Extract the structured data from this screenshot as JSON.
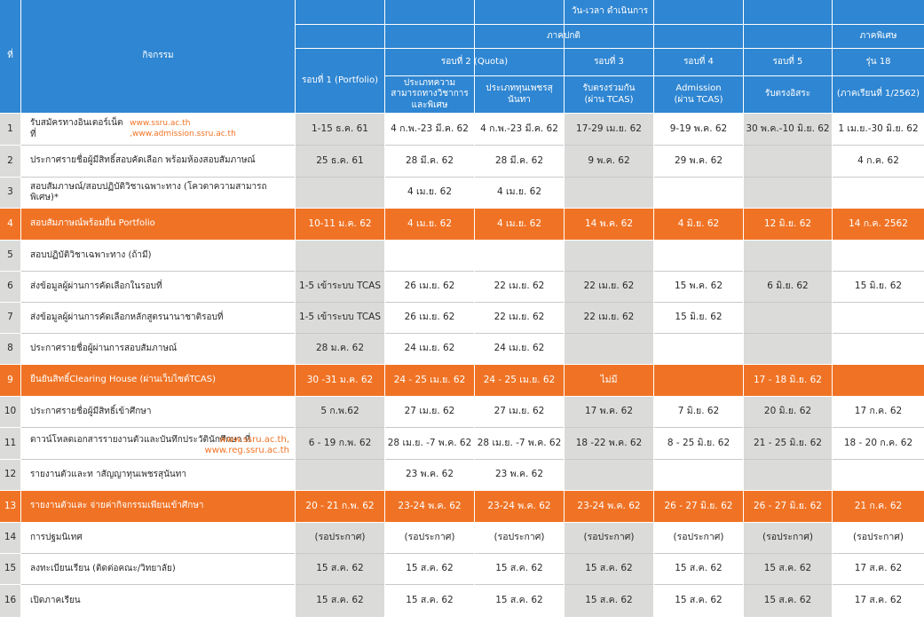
{
  "header": {
    "no_label": "ที่",
    "activity_label": "กิจกรรม",
    "datetime_label": "วัน-เวลา ดำเนินการ",
    "regular_label": "ภาคปกติ",
    "special_label": "ภาคพิเศษ",
    "round1": "รอบที่ 1 (Portfolio)",
    "round2": "รอบที่ 2 (Quota)",
    "round2a": "ประเภทความสามารถทางวิชาการและพิเศษ",
    "round2b": "ประเภททุนเพชรสุนันทา",
    "round3": "รอบที่ 3",
    "round3_sub": "รับตรงร่วมกัน (ผ่าน TCAS)",
    "round4": "รอบที่ 4",
    "round4_sub": "Admission (ผ่าน TCAS)",
    "round5": "รอบที่ 5",
    "round5_sub": "รับตรงอิสระ",
    "special_batch": "รุ่น 18",
    "special_sub": "(ภาคเรียนที่ 1/2562)"
  },
  "rows": [
    {
      "no": "1",
      "activity": "รับสมัครทางอินเตอร์เน็ตที่",
      "activity_link": "www.ssru.ac.th ,www.admission.ssru.ac.th",
      "r1": "1-15 ธ.ค. 61",
      "r2a": "4 ก.พ.-23 มี.ค. 62",
      "r2b": "4 ก.พ.-23 มี.ค. 62",
      "r3": "17-29 เม.ย. 62",
      "r4": "9-19 พ.ค. 62",
      "r5": "30 พ.ค.-10 มิ.ย. 62",
      "sp": "1 เม.ย.-30 มิ.ย. 62"
    },
    {
      "no": "2",
      "activity": "ประกาศรายชื่อผู้มีสิทธิ์สอบคัดเลือก พร้อมห้องสอบสัมภาษณ์",
      "r1": "25 ธ.ค. 61",
      "r2a": "28 มี.ค. 62",
      "r2b": "28 มี.ค. 62",
      "r3": "9 พ.ค. 62",
      "r4": "29 พ.ค. 62",
      "r5": "",
      "sp": "4 ก.ค. 62"
    },
    {
      "no": "3",
      "activity": "สอบสัมภาษณ์/สอบปฏิบัติวิชาเฉพาะทาง (โควตาความสามารถพิเศษ)*",
      "r1": "",
      "r2a": "4 เม.ย. 62",
      "r2b": "4 เม.ย. 62",
      "r3": "",
      "r4": "",
      "r5": "",
      "sp": ""
    },
    {
      "no": "4",
      "activity": "สอบสัมภาษณ์พร้อมยื่น Portfolio",
      "r1": "10-11 ม.ค. 62",
      "r2a": "4 เม.ย. 62",
      "r2b": "4 เม.ย. 62",
      "r3": "14 พ.ค. 62",
      "r4": "4 มิ.ย. 62",
      "r5": "12 มิ.ย. 62",
      "sp": "14 ก.ค. 2562"
    },
    {
      "no": "5",
      "activity": "สอบปฏิบัติวิชาเฉพาะทาง (ถ้ามี)",
      "r1": "",
      "r2a": "",
      "r2b": "",
      "r3": "",
      "r4": "",
      "r5": "",
      "sp": ""
    },
    {
      "no": "6",
      "activity": "ส่งข้อมูลผู้ผ่านการคัดเลือกในรอบที่",
      "r1": "1-5 เข้าระบบ TCAS",
      "r2a": "26 เม.ย. 62",
      "r2b": "22 เม.ย. 62",
      "r3": "22 เม.ย. 62",
      "r4": "15 พ.ค. 62",
      "r5": "6 มิ.ย. 62",
      "sp": "15 มิ.ย. 62"
    },
    {
      "no": "7",
      "activity": "ส่งข้อมูลผู้ผ่านการคัดเลือกหลักสูตรนานาชาติรอบที่",
      "r1": "1-5 เข้าระบบ TCAS",
      "r2a": "26 เม.ย. 62",
      "r2b": "22 เม.ย. 62",
      "r3": "22 เม.ย. 62",
      "r4": "15 มิ.ย. 62",
      "r5": "",
      "sp": ""
    },
    {
      "no": "8",
      "activity": "ประกาศรายชื่อผู้ผ่านการสอบสัมภาษณ์",
      "r1": "28 ม.ค. 62",
      "r2a": "24 เม.ย. 62",
      "r2b": "24 เม.ย. 62",
      "r3": "",
      "r4": "",
      "r5": "",
      "sp": ""
    },
    {
      "no": "9",
      "activity": "ยืนยันสิทธิ์Clearing House (ผ่านเว็บไซต์TCAS)",
      "r1": "30 -31 ม.ค. 62",
      "r2a": "24 - 25 เม.ย. 62",
      "r2b": "24 - 25 เม.ย. 62",
      "r3": "ไม่มี",
      "r4": "",
      "r5": "17 - 18 มิ.ย. 62",
      "sp": ""
    },
    {
      "no": "10",
      "activity": "ประกาศรายชื่อผู้มีสิทธิ์เข้าศึกษา",
      "r1": "5 ก.พ.62",
      "r2a": "27 เม.ย. 62",
      "r2b": "27 เม.ย. 62",
      "r3": "17 พ.ค. 62",
      "r4": "7 มิ.ย. 62",
      "r5": "20 มิ.ย. 62",
      "sp": "17 ก.ค. 62"
    },
    {
      "no": "11",
      "activity": "ดาวน์โหลดเอกสารรายงานตัวและบันทึกประวัตินักศึกษา ที่",
      "activity_link": "www.ssru.ac.th,",
      "activity_link2": "www.reg.ssru.ac.th",
      "r1": "6 - 19 ก.พ. 62",
      "r2a": "28 เม.ย. -7 พ.ค. 62",
      "r2b": "28 เม.ย. -7 พ.ค. 62",
      "r3": "18 -22 พ.ค. 62",
      "r4": "8 - 25 มิ.ย. 62",
      "r5": "21 - 25 มิ.ย. 62",
      "sp": "18 - 20 ก.ค. 62"
    },
    {
      "no": "12",
      "activity": "รายงานตัวและท าสัญญาทุนเพชรสุนันทา",
      "r1": "",
      "r2a": "23 พ.ค. 62",
      "r2b": "23 พ.ค. 62",
      "r3": "",
      "r4": "",
      "r5": "",
      "sp": ""
    },
    {
      "no": "13",
      "activity": "รายงานตัวและ จ่ายค่ากิจกรรมเพียนเข้าศึกษา",
      "r1": "20 - 21 ก.พ. 62",
      "r2a": "23-24 พ.ค. 62",
      "r2b": "23-24 พ.ค. 62",
      "r3": "23-24 พ.ค. 62",
      "r4": "26 - 27 มิ.ย. 62",
      "r5": "26 - 27 มิ.ย. 62",
      "sp": "21 ก.ค. 62"
    },
    {
      "no": "14",
      "activity": "การปฐมนิเทศ",
      "r1": "(รอประกาศ)",
      "r2a": "(รอประกาศ)",
      "r2b": "(รอประกาศ)",
      "r3": "(รอประกาศ)",
      "r4": "(รอประกาศ)",
      "r5": "(รอประกาศ)",
      "sp": "(รอประกาศ)"
    },
    {
      "no": "15",
      "activity": "ลงทะเบียนเรียน (ติดต่อคณะ/วิทยาลัย)",
      "r1": "15 ส.ค. 62",
      "r2a": "15 ส.ค. 62",
      "r2b": "15 ส.ค. 62",
      "r3": "15 ส.ค. 62",
      "r4": "15 ส.ค. 62",
      "r5": "15 ส.ค. 62",
      "sp": "17 ส.ค. 62"
    },
    {
      "no": "16",
      "activity": "เปิดภาคเรียน",
      "r1": "15 ส.ค. 62",
      "r2a": "15 ส.ค. 62",
      "r2b": "15 ส.ค. 62",
      "r3": "15 ส.ค. 62",
      "r4": "15 ส.ค. 62",
      "r5": "15 ส.ค. 62",
      "sp": "17 ส.ค. 62"
    }
  ],
  "colors": {
    "header_blue": "#2f86d2",
    "highlight_orange": "#f07325",
    "column_gray": "#dbdbd9",
    "link_orange": "#f07325"
  }
}
